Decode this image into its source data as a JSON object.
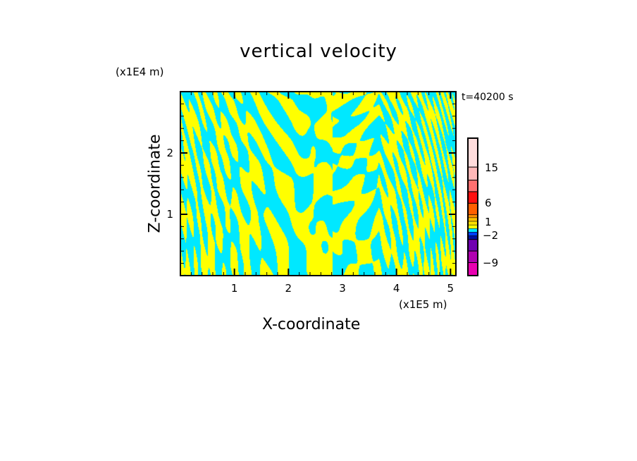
{
  "chart_data": {
    "type": "heatmap",
    "title": "vertical velocity",
    "xlabel": "X-coordinate",
    "ylabel": "Z-coordinate",
    "x_unit": "(x1E5 m)",
    "y_unit": "(x1E4 m)",
    "annotation": "t=40200 s",
    "xlim": [
      0,
      5.1
    ],
    "ylim": [
      0,
      3.0
    ],
    "xticks": [
      1,
      2,
      3,
      4,
      5
    ],
    "yticks": [
      1,
      2
    ],
    "dominant_values": "alternating bands of slightly positive (yellow) and slightly negative (cyan) vertical velocity",
    "colorbar": {
      "tick_labels": [
        "15",
        "6",
        "1",
        "-2",
        "-9"
      ],
      "colors": [
        "#ffdcdc",
        "#ffb8b8",
        "#ff7070",
        "#ff1010",
        "#ff6000",
        "#ff9000",
        "#ffc000",
        "#ffe000",
        "#ffff00",
        "#00e8ff",
        "#0040ff",
        "#0010a0",
        "#7000b0",
        "#b000b0",
        "#e800b0"
      ]
    }
  }
}
